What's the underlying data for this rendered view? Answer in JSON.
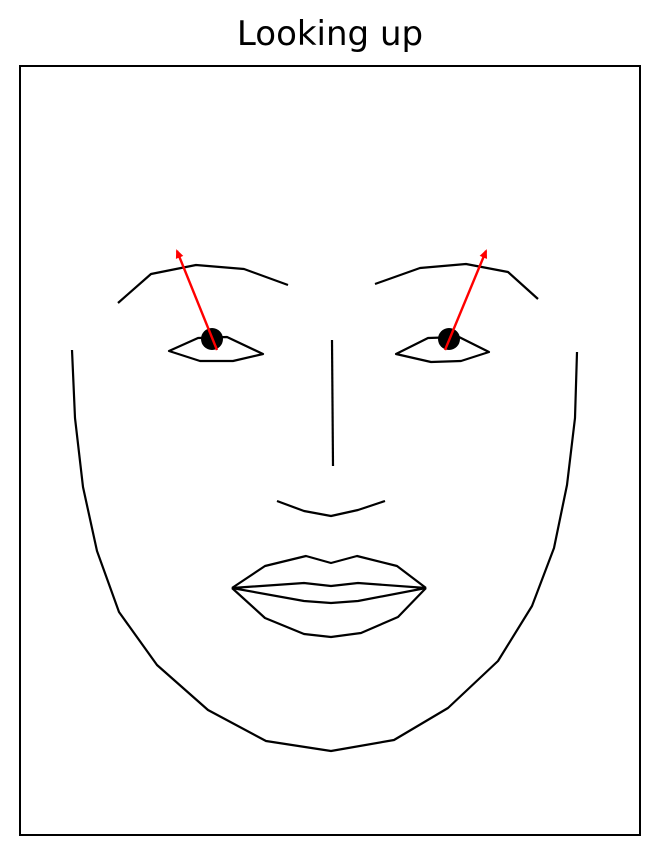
{
  "title": "Looking up",
  "gaze_direction": "up",
  "colors": {
    "line": "#000000",
    "gaze_arrow": "#ff0000",
    "pupil": "#000000",
    "background": "#ffffff"
  }
}
